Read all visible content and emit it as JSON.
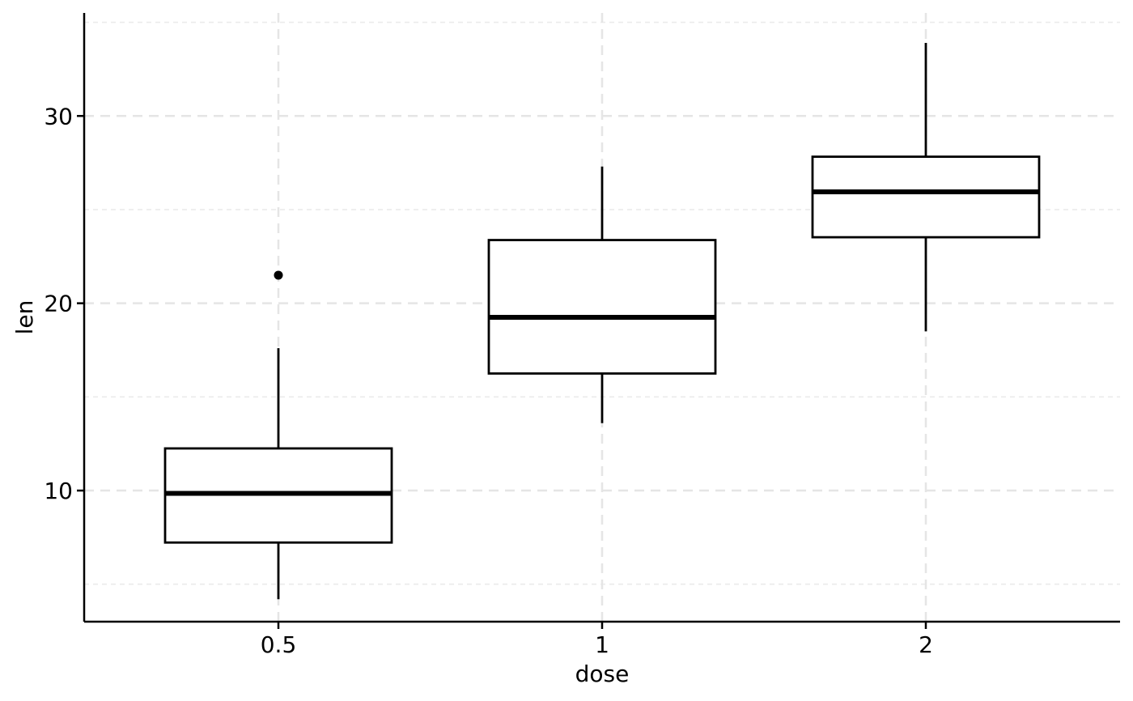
{
  "chart_data": {
    "type": "boxplot",
    "xlabel": "dose",
    "ylabel": "len",
    "categories": [
      "0.5",
      "1",
      "2"
    ],
    "ylim": [
      3.0,
      35.5
    ],
    "y_ticks": [
      10,
      20,
      30
    ],
    "y_minor_ticks": [
      5,
      15,
      25,
      35
    ],
    "grid": true,
    "boxes": [
      {
        "category": "0.5",
        "min": 4.2,
        "q1": 7.225,
        "median": 9.85,
        "q3": 12.25,
        "max": 17.6,
        "outliers": [
          21.5
        ]
      },
      {
        "category": "1",
        "min": 13.6,
        "q1": 16.25,
        "median": 19.25,
        "q3": 23.375,
        "max": 27.3,
        "outliers": []
      },
      {
        "category": "2",
        "min": 18.5,
        "q1": 23.525,
        "median": 25.95,
        "q3": 27.825,
        "max": 33.9,
        "outliers": []
      }
    ]
  }
}
